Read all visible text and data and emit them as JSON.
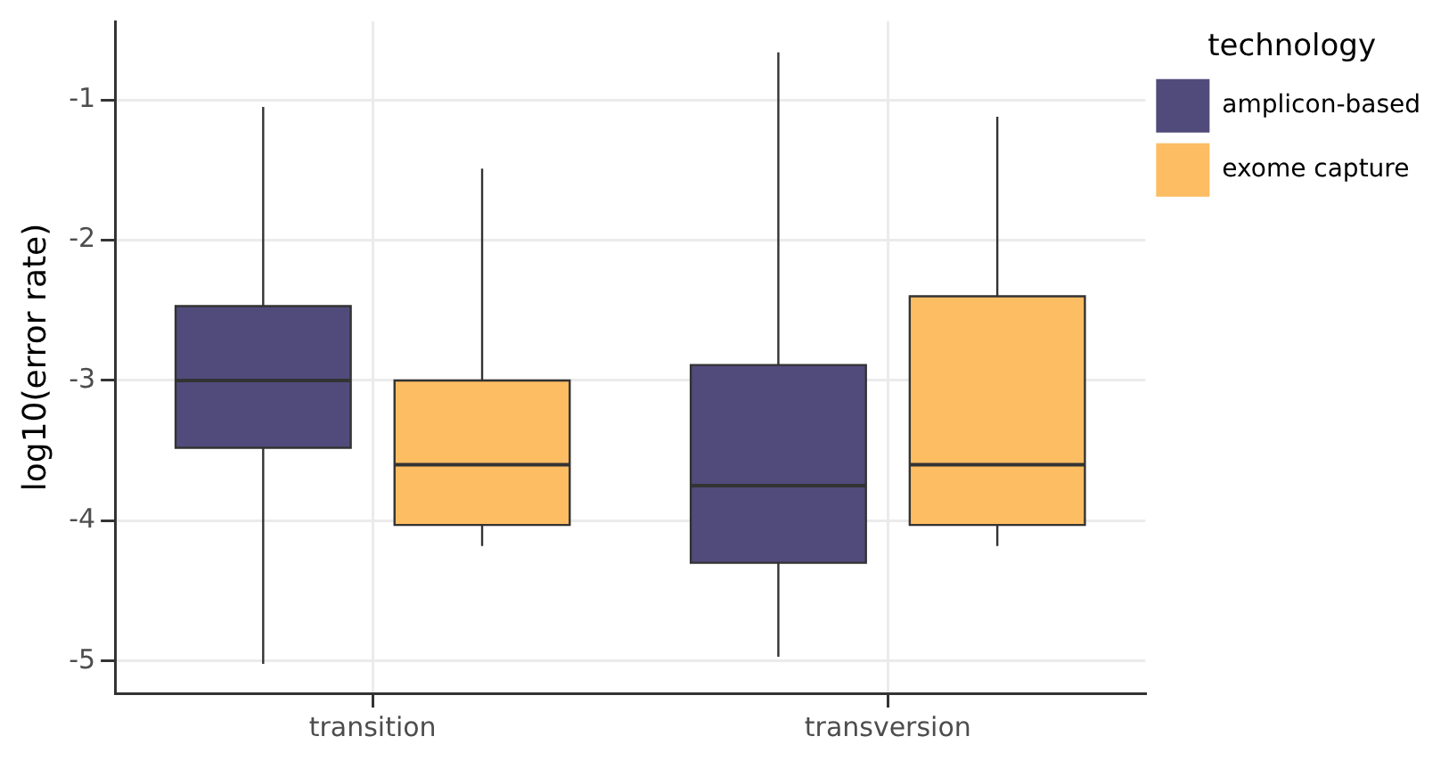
{
  "chart_data": {
    "type": "box",
    "ylabel": "log10(error rate)",
    "legend_title": "technology",
    "legend": "top right",
    "grid": true,
    "categories": [
      "transition",
      "transversion"
    ],
    "ylim": [
      -5.23,
      -0.44
    ],
    "yticks": [
      -5,
      -4,
      -3,
      -2,
      -1
    ],
    "series": [
      {
        "name": "amplicon-based",
        "color": "#514b7c",
        "boxes": [
          {
            "low": -5.02,
            "q1": -3.48,
            "median": -3.0,
            "q3": -2.47,
            "high": -1.05
          },
          {
            "low": -4.97,
            "q1": -4.3,
            "median": -3.75,
            "q3": -2.89,
            "high": -0.66
          }
        ]
      },
      {
        "name": "exome capture",
        "color": "#fcbd63",
        "boxes": [
          {
            "low": -4.18,
            "q1": -4.03,
            "median": -3.6,
            "q3": -3.0,
            "high": -1.49
          },
          {
            "low": -4.18,
            "q1": -4.03,
            "median": -3.6,
            "q3": -2.4,
            "high": -1.12
          }
        ]
      }
    ]
  }
}
